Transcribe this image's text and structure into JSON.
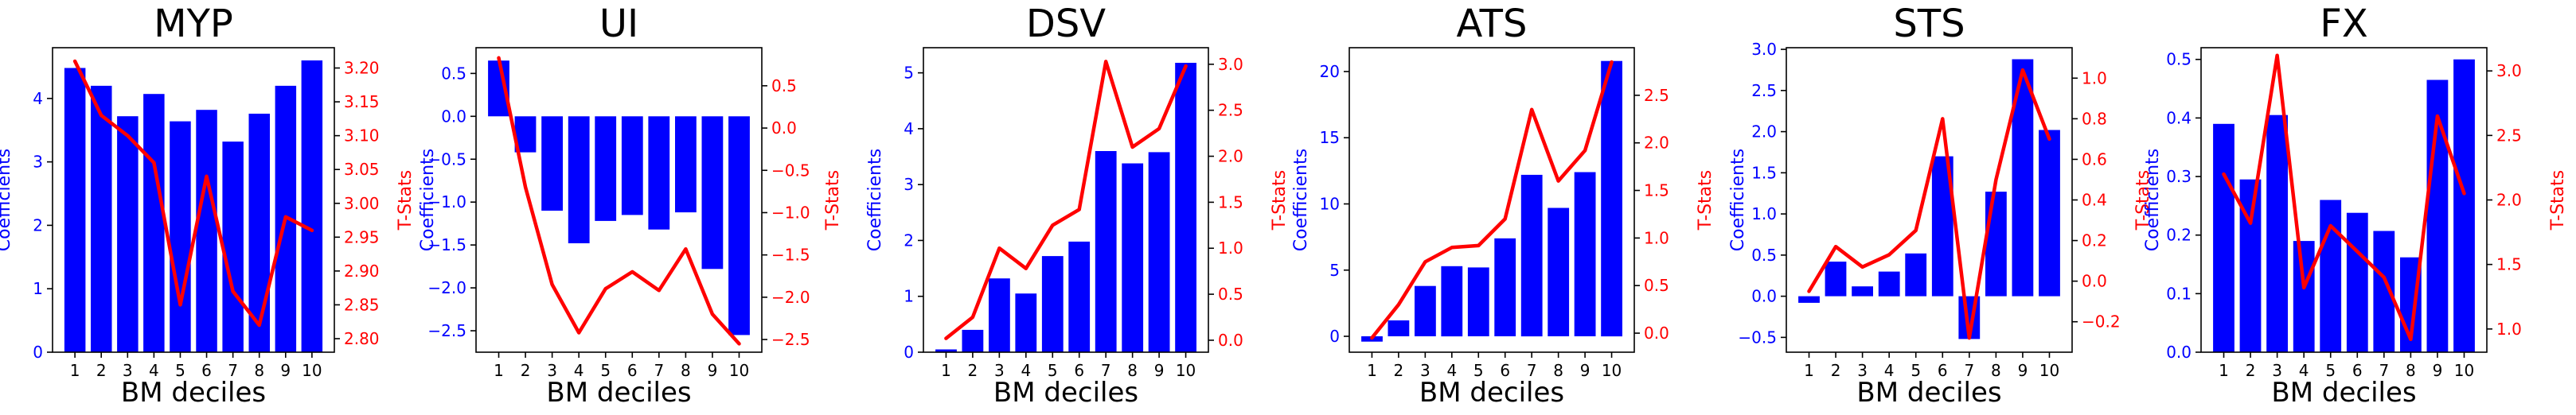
{
  "colors": {
    "bars": "#0000ff",
    "line": "#ff0000",
    "axis": "#000000"
  },
  "chart_data": [
    {
      "type": "bar+line",
      "title": "MYP",
      "xlabel": "BM deciles",
      "ylabel_left": "Coefficients",
      "ylabel_right": "T-Stats",
      "categories": [
        "1",
        "2",
        "3",
        "4",
        "5",
        "6",
        "7",
        "8",
        "9",
        "10"
      ],
      "ylim_left": [
        0,
        4.8
      ],
      "yticks_left": [
        "0",
        "1",
        "2",
        "3",
        "4"
      ],
      "ylim_right": [
        2.78,
        3.23
      ],
      "yticks_right": [
        "2.80",
        "2.85",
        "2.90",
        "2.95",
        "3.00",
        "3.05",
        "3.10",
        "3.15",
        "3.20"
      ],
      "series": [
        {
          "axis": "left",
          "kind": "bar",
          "values": [
            4.48,
            4.2,
            3.72,
            4.07,
            3.64,
            3.82,
            3.32,
            3.76,
            4.2,
            4.6
          ]
        },
        {
          "axis": "right",
          "kind": "line",
          "values": [
            3.21,
            3.13,
            3.1,
            3.06,
            2.85,
            3.04,
            2.87,
            2.82,
            2.98,
            2.96
          ]
        }
      ],
      "grid": false
    },
    {
      "type": "bar+line",
      "title": "UI",
      "xlabel": "BM deciles",
      "ylabel_left": "Coefficients",
      "ylabel_right": "T-Stats",
      "categories": [
        "1",
        "2",
        "3",
        "4",
        "5",
        "6",
        "7",
        "8",
        "9",
        "10"
      ],
      "ylim_left": [
        -2.75,
        0.8
      ],
      "yticks_left": [
        "−2.5",
        "−2.0",
        "−1.5",
        "−1.0",
        "−0.5",
        "0.0",
        "0.5"
      ],
      "ylim_right": [
        -2.65,
        0.95
      ],
      "yticks_right": [
        "−2.5",
        "−2.0",
        "−1.5",
        "−1.0",
        "−0.5",
        "0.0",
        "0.5"
      ],
      "series": [
        {
          "axis": "left",
          "kind": "bar",
          "values": [
            0.65,
            -0.42,
            -1.1,
            -1.48,
            -1.22,
            -1.15,
            -1.32,
            -1.12,
            -1.78,
            -2.55
          ]
        },
        {
          "axis": "right",
          "kind": "line",
          "values": [
            0.83,
            -0.7,
            -1.85,
            -2.42,
            -1.9,
            -1.7,
            -1.92,
            -1.43,
            -2.2,
            -2.55
          ]
        }
      ],
      "grid": false
    },
    {
      "type": "bar+line",
      "title": "DSV",
      "xlabel": "BM deciles",
      "ylabel_left": "Coefficients",
      "ylabel_right": "T-Stats",
      "categories": [
        "1",
        "2",
        "3",
        "4",
        "5",
        "6",
        "7",
        "8",
        "9",
        "10"
      ],
      "ylim_left": [
        0,
        5.45
      ],
      "yticks_left": [
        "0",
        "1",
        "2",
        "3",
        "4",
        "5"
      ],
      "ylim_right": [
        -0.13,
        3.18
      ],
      "yticks_right": [
        "0.0",
        "0.5",
        "1.0",
        "1.5",
        "2.0",
        "2.5",
        "3.0"
      ],
      "series": [
        {
          "axis": "left",
          "kind": "bar",
          "values": [
            0.05,
            0.4,
            1.32,
            1.05,
            1.72,
            1.98,
            3.6,
            3.38,
            3.58,
            5.18
          ]
        },
        {
          "axis": "right",
          "kind": "line",
          "values": [
            0.02,
            0.25,
            1.0,
            0.78,
            1.25,
            1.42,
            3.03,
            2.1,
            2.3,
            2.98
          ]
        }
      ],
      "grid": false
    },
    {
      "type": "bar+line",
      "title": "ATS",
      "xlabel": "BM deciles",
      "ylabel_left": "Coefficients",
      "ylabel_right": "T-Stats",
      "categories": [
        "1",
        "2",
        "3",
        "4",
        "5",
        "6",
        "7",
        "8",
        "9",
        "10"
      ],
      "ylim_left": [
        -1.2,
        21.8
      ],
      "yticks_left": [
        "0",
        "5",
        "10",
        "15",
        "20"
      ],
      "ylim_right": [
        -0.2,
        3.0
      ],
      "yticks_right": [
        "0.0",
        "0.5",
        "1.0",
        "1.5",
        "2.0",
        "2.5"
      ],
      "series": [
        {
          "axis": "left",
          "kind": "bar",
          "values": [
            -0.4,
            1.2,
            3.8,
            5.3,
            5.2,
            7.4,
            12.2,
            9.7,
            12.4,
            20.8
          ]
        },
        {
          "axis": "right",
          "kind": "line",
          "values": [
            -0.05,
            0.3,
            0.75,
            0.9,
            0.92,
            1.2,
            2.35,
            1.6,
            1.92,
            2.85
          ]
        }
      ],
      "grid": false
    },
    {
      "type": "bar+line",
      "title": "STS",
      "xlabel": "BM deciles",
      "ylabel_left": "Coefficients",
      "ylabel_right": "T-Stats",
      "categories": [
        "1",
        "2",
        "3",
        "4",
        "5",
        "6",
        "7",
        "8",
        "9",
        "10"
      ],
      "ylim_left": [
        -0.68,
        3.02
      ],
      "yticks_left": [
        "−0.5",
        "0.0",
        "0.5",
        "1.0",
        "1.5",
        "2.0",
        "2.5",
        "3.0"
      ],
      "ylim_right": [
        -0.35,
        1.15
      ],
      "yticks_right": [
        "−0.2",
        "0.0",
        "0.2",
        "0.4",
        "0.6",
        "0.8",
        "1.0"
      ],
      "series": [
        {
          "axis": "left",
          "kind": "bar",
          "values": [
            -0.08,
            0.42,
            0.12,
            0.3,
            0.52,
            1.7,
            -0.52,
            1.27,
            2.88,
            2.02
          ]
        },
        {
          "axis": "right",
          "kind": "line",
          "values": [
            -0.05,
            0.17,
            0.07,
            0.13,
            0.25,
            0.8,
            -0.28,
            0.5,
            1.04,
            0.7
          ]
        }
      ],
      "grid": false
    },
    {
      "type": "bar+line",
      "title": "FX",
      "xlabel": "BM deciles",
      "ylabel_left": "Coefficients",
      "ylabel_right": "T-Stats",
      "categories": [
        "1",
        "2",
        "3",
        "4",
        "5",
        "6",
        "7",
        "8",
        "9",
        "10"
      ],
      "ylim_left": [
        0,
        0.52
      ],
      "yticks_left": [
        "0.0",
        "0.1",
        "0.2",
        "0.3",
        "0.4",
        "0.5"
      ],
      "ylim_right": [
        0.82,
        3.18
      ],
      "yticks_right": [
        "1.0",
        "1.5",
        "2.0",
        "2.5",
        "3.0"
      ],
      "series": [
        {
          "axis": "left",
          "kind": "bar",
          "values": [
            0.39,
            0.295,
            0.405,
            0.19,
            0.26,
            0.238,
            0.207,
            0.162,
            0.465,
            0.5
          ]
        },
        {
          "axis": "right",
          "kind": "line",
          "values": [
            2.2,
            1.82,
            3.12,
            1.32,
            1.8,
            1.6,
            1.4,
            0.92,
            2.65,
            2.05
          ]
        }
      ],
      "grid": false
    }
  ]
}
